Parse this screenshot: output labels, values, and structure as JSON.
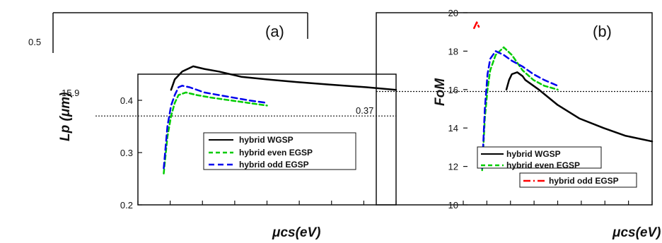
{
  "chart_data": [
    {
      "type": "line",
      "panel_label": "(a)",
      "xlabel": "μcs(eV)",
      "ylabel": "Lp (μm)",
      "yticks": [
        "0.2",
        "0.3",
        "0.4"
      ],
      "ylim": [
        0.2,
        0.45
      ],
      "xlim": [
        0.2,
        0.9
      ],
      "reference_lines": [
        {
          "value": 0.37,
          "label": "0.37",
          "style": "dotted"
        }
      ],
      "legend": {
        "position": "bottom-right",
        "entries": [
          "hybrid WGSP",
          "hybrid even EGSP",
          "hybrid odd EGSP"
        ]
      },
      "inset": {
        "tick_labels": [
          "0.5",
          "15.9"
        ]
      },
      "series": [
        {
          "name": "hybrid WGSP",
          "color": "#000000",
          "dash": "solid",
          "x": [
            0.29,
            0.3,
            0.32,
            0.35,
            0.38,
            0.42,
            0.48,
            0.55,
            0.63,
            0.72,
            0.82,
            0.9
          ],
          "y": [
            0.42,
            0.44,
            0.455,
            0.465,
            0.46,
            0.455,
            0.445,
            0.44,
            0.435,
            0.43,
            0.425,
            0.42
          ]
        },
        {
          "name": "hybrid even EGSP",
          "color": "#00cc00",
          "dash": "6,4",
          "x": [
            0.27,
            0.28,
            0.29,
            0.3,
            0.31,
            0.33,
            0.36,
            0.4,
            0.45,
            0.5,
            0.55
          ],
          "y": [
            0.26,
            0.33,
            0.37,
            0.395,
            0.41,
            0.415,
            0.41,
            0.405,
            0.4,
            0.395,
            0.39
          ]
        },
        {
          "name": "hybrid odd EGSP",
          "color": "#0000ee",
          "dash": "8,5",
          "x": [
            0.27,
            0.28,
            0.29,
            0.3,
            0.31,
            0.32,
            0.34,
            0.38,
            0.42,
            0.46,
            0.5,
            0.55
          ],
          "y": [
            0.27,
            0.35,
            0.39,
            0.41,
            0.425,
            0.428,
            0.425,
            0.415,
            0.41,
            0.405,
            0.4,
            0.395
          ]
        }
      ]
    },
    {
      "type": "line",
      "panel_label": "(b)",
      "xlabel": "μcs(eV)",
      "ylabel": "FoM",
      "yticks": [
        "10",
        "12",
        "14",
        "16",
        "18",
        "20"
      ],
      "ylim": [
        10,
        20
      ],
      "xlim": [
        0.2,
        0.9
      ],
      "reference_lines": [
        {
          "value": 15.9,
          "style": "dotted"
        }
      ],
      "legend": {
        "position": "bottom-right",
        "entries": [
          "hybrid WGSP",
          "hybrid even EGSP",
          "hybrid odd EGSP"
        ]
      },
      "series": [
        {
          "name": "hybrid WGSP",
          "color": "#000000",
          "dash": "solid",
          "x": [
            0.36,
            0.37,
            0.38,
            0.4,
            0.42,
            0.43,
            0.48,
            0.55,
            0.63,
            0.72,
            0.8,
            0.9
          ],
          "y": [
            16.0,
            16.5,
            16.8,
            16.9,
            16.7,
            16.5,
            16.0,
            15.2,
            14.5,
            14.0,
            13.6,
            13.3
          ]
        },
        {
          "name": "hybrid even EGSP",
          "color": "#00cc00",
          "dash": "6,4",
          "x": [
            0.27,
            0.28,
            0.29,
            0.3,
            0.32,
            0.35,
            0.38,
            0.42,
            0.46,
            0.5,
            0.55
          ],
          "y": [
            11.8,
            14.5,
            16.0,
            17.0,
            17.8,
            18.2,
            17.8,
            17.0,
            16.5,
            16.2,
            16.0
          ]
        },
        {
          "name": "hybrid odd EGSP",
          "color": "#0000ee",
          "dash": "8,5",
          "x": [
            0.27,
            0.28,
            0.29,
            0.3,
            0.32,
            0.35,
            0.38,
            0.42,
            0.46,
            0.5,
            0.55
          ],
          "y": [
            11.9,
            15.0,
            16.8,
            17.6,
            18.0,
            17.8,
            17.5,
            17.2,
            16.8,
            16.5,
            16.2
          ]
        },
        {
          "name": "hybrid odd EGSP",
          "color": "#ff0000",
          "dash": "10,4,2,4",
          "x": [
            0.24,
            0.25,
            0.26
          ],
          "y": [
            19.2,
            19.5,
            19.2
          ]
        }
      ]
    }
  ]
}
